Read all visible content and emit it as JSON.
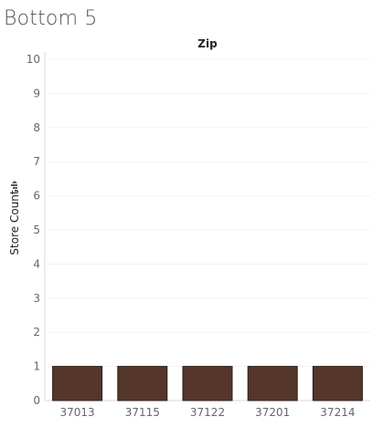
{
  "page": {
    "title": "Bottom 5"
  },
  "chart_data": {
    "type": "bar",
    "column_header": "Zip",
    "categories": [
      "37013",
      "37115",
      "37122",
      "37201",
      "37214"
    ],
    "values": [
      1,
      1,
      1,
      1,
      1
    ],
    "title": "",
    "xlabel": "",
    "ylabel": "Store Count",
    "ylim": [
      0,
      10
    ],
    "y_ticks": [
      0,
      1,
      2,
      3,
      4,
      5,
      6,
      7,
      8,
      9,
      10
    ],
    "y_sorted_indicator": true,
    "sort_icon": "sort-descending-icon",
    "grid": true,
    "legend": "none",
    "bar_color": "#55362b",
    "bar_edge_color": "#2f1c14"
  }
}
